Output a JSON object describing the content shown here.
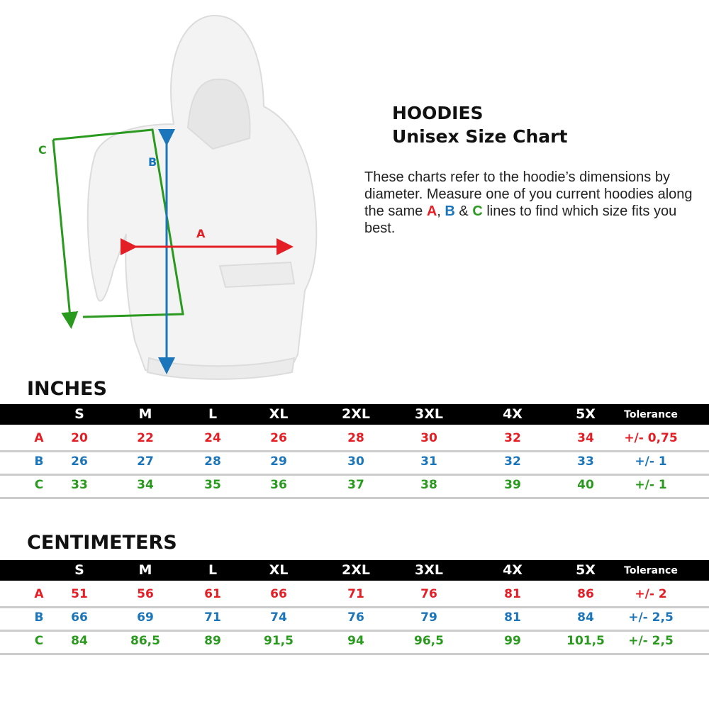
{
  "header": {
    "title_line1": "HOODIES",
    "title_line2": "Unisex Size Chart"
  },
  "description": {
    "text": "These charts refer to the hoodie’s dimensions by diameter. Measure one of you current hoodies along the same ",
    "a": "A",
    "sep1": ", ",
    "b": "B",
    "sep2": " & ",
    "c": "C",
    "end": " lines to find which size fits you best."
  },
  "diagram": {
    "label_a": "A",
    "label_b": "B",
    "label_c": "C"
  },
  "colors": {
    "A": "#e31e24",
    "B": "#1b75bb",
    "C": "#2a9a1e",
    "header_bg": "#000000"
  },
  "columns": [
    "S",
    "M",
    "L",
    "XL",
    "2XL",
    "3XL",
    "4X",
    "5X",
    "Tolerance"
  ],
  "tables": [
    {
      "title": "INCHES",
      "rows": [
        {
          "label": "A",
          "values": [
            "20",
            "22",
            "24",
            "26",
            "28",
            "30",
            "32",
            "34"
          ],
          "tolerance": "+/- 0,75"
        },
        {
          "label": "B",
          "values": [
            "26",
            "27",
            "28",
            "29",
            "30",
            "31",
            "32",
            "33"
          ],
          "tolerance": "+/- 1"
        },
        {
          "label": "C",
          "values": [
            "33",
            "34",
            "35",
            "36",
            "37",
            "38",
            "39",
            "40"
          ],
          "tolerance": "+/- 1"
        }
      ]
    },
    {
      "title": "CENTIMETERS",
      "rows": [
        {
          "label": "A",
          "values": [
            "51",
            "56",
            "61",
            "66",
            "71",
            "76",
            "81",
            "86"
          ],
          "tolerance": "+/- 2"
        },
        {
          "label": "B",
          "values": [
            "66",
            "69",
            "71",
            "74",
            "76",
            "79",
            "81",
            "84"
          ],
          "tolerance": "+/- 2,5"
        },
        {
          "label": "C",
          "values": [
            "84",
            "86,5",
            "89",
            "91,5",
            "94",
            "96,5",
            "99",
            "101,5"
          ],
          "tolerance": "+/- 2,5"
        }
      ]
    }
  ]
}
